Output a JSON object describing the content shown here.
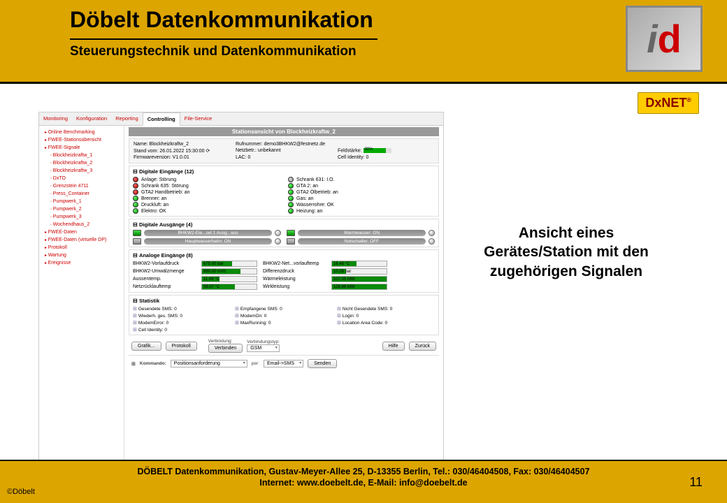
{
  "header": {
    "title": "Döbelt Datenkommunikation",
    "subtitle": "Steuerungstechnik und Datenkommunikation"
  },
  "branding": {
    "dxnet": "DxNET",
    "trademark": "®"
  },
  "tabs": {
    "items": [
      "Monitoring",
      "Konfiguration",
      "Reporting",
      "Controlling",
      "File-Service"
    ],
    "active_index": 3
  },
  "sidebar": [
    {
      "label": "Online Benchmarking",
      "sub": false
    },
    {
      "label": "FWEE-Stationsübersicht",
      "sub": false
    },
    {
      "label": "FWEE-Signale",
      "sub": false
    },
    {
      "label": "Blockheizkraftw_1",
      "sub": true
    },
    {
      "label": "Blockheizkraftw_2",
      "sub": true
    },
    {
      "label": "Blockheizkraftw_3",
      "sub": true
    },
    {
      "label": "DxTO",
      "sub": true
    },
    {
      "label": "Grenzstein 4711",
      "sub": true
    },
    {
      "label": "Press_Container",
      "sub": true
    },
    {
      "label": "Pumpwerk_1",
      "sub": true
    },
    {
      "label": "Pumpwerk_2",
      "sub": true
    },
    {
      "label": "Pumpwerk_3",
      "sub": true
    },
    {
      "label": "Wochendhaus_2",
      "sub": true
    },
    {
      "label": "FWEE-Daten",
      "sub": false
    },
    {
      "label": "FWEE-Daten (virtuelle DP)",
      "sub": false
    },
    {
      "label": "Protokoll",
      "sub": false
    },
    {
      "label": "Wartung",
      "sub": false
    },
    {
      "label": "Ereignisse",
      "sub": false
    }
  ],
  "panel_title": "Stationsansicht von Blockheizkraftw_2",
  "station_info": {
    "name_label": "Name: Blockheizkraftw_2",
    "rufnummer": "Rufnummer: demo3BHKW2@festnetz.de",
    "stand": "Stand vom: 26.01.2022 15:30:00 ⟳",
    "netzbetr": "Netzbetr.: unbekannt",
    "feldstaerke_label": "Feldstärke:",
    "feldstaerke_val": "80%",
    "firmware": "Firmwareversion: V1.0.01",
    "lac": "LAC: 0",
    "cell": "Cell Identity: 0"
  },
  "digital_inputs": {
    "title": "Digitale Eingänge (12)",
    "left": [
      {
        "color": "red",
        "label": "Anlage: Störung"
      },
      {
        "color": "red",
        "label": "Schrank 635: Störung"
      },
      {
        "color": "red",
        "label": "GTA2 Handbetrieb: an"
      },
      {
        "color": "green",
        "label": "Brenner: an"
      },
      {
        "color": "green",
        "label": "Druckluft: an"
      },
      {
        "color": "green",
        "label": "Elektro: OK"
      }
    ],
    "right": [
      {
        "color": "gray",
        "label": "Schrank 631: I.O."
      },
      {
        "color": "green",
        "label": "GTA 2: an"
      },
      {
        "color": "green",
        "label": "GTA2 Ölbetrieb: an"
      },
      {
        "color": "green",
        "label": "Gas: an"
      },
      {
        "color": "green",
        "label": "Wasserrohre: OK"
      },
      {
        "color": "green",
        "label": "Heizung: an"
      }
    ]
  },
  "digital_outputs": {
    "title": "Digitale Ausgänge (4)",
    "items": [
      {
        "led": "green",
        "label": "BHKW2-Ele...sel 1 Ausg.: aus"
      },
      {
        "led": "green",
        "label": "Warmwasser: ON"
      },
      {
        "led": "gray",
        "label": "Hauptwasserhahn: ON"
      },
      {
        "led": "gray",
        "label": "Notschalter: OFF"
      }
    ]
  },
  "analog_inputs": {
    "title": "Analoge Eingänge (8)",
    "rows": [
      {
        "l1": "BHKW2-Vorlaufdruck",
        "v1": "675.00 bar",
        "f1": 55,
        "l2": "BHKW2-Net...vorlauftemp",
        "v2": "16.48 °C",
        "f2": 45
      },
      {
        "l1": "BHKW2-Umwälzmenge",
        "v1": "880.00 m³/h",
        "f1": 70,
        "l2": "Differenzdruck",
        "v2": "10.26 bar",
        "f2": 25
      },
      {
        "l1": "Aussentemp.",
        "v1": "11.06 °C",
        "f1": 32,
        "l2": "Wärmeleistung",
        "v2": "107.05 MW",
        "f2": 100
      },
      {
        "l1": "Netzrücklauftemp",
        "v1": "58.07 °C",
        "f1": 60,
        "l2": "Wirkleistung",
        "v2": "126.86 MW",
        "f2": 100
      }
    ]
  },
  "statistik": {
    "title": "Statistik",
    "items": [
      "Gesendete SMS: 0",
      "Empfangene SMS: 0",
      "Nicht Gesendete SMS: 0",
      "Wiederh. ges. SMS: 0",
      "ModemOn: 0",
      "Login: 0",
      "ModemError: 0",
      "MaxRunning: 0",
      "Location Area Code: 0",
      "Cell Identity: 0"
    ]
  },
  "bottom_bar": {
    "grafik": "Grafik...",
    "protokoll": "Protokoll",
    "verbindung_label": "Verbindung:",
    "verbinden": "Verbinden",
    "verbindungstyp_label": "Verbindungstyp:",
    "verbindungstyp": "GSM",
    "hilfe": "Hilfe",
    "zurueck": "Zurück",
    "kommando_label": "Kommando:",
    "kommando_val": "Positionsanforderung",
    "per_label": "per:",
    "per_val": "Email->SMS",
    "senden": "Senden"
  },
  "caption": "Ansicht eines Gerätes/Station mit den zugehörigen Signalen",
  "footer": {
    "line1": "DÖBELT Datenkommunikation, Gustav-Meyer-Allee 25, D-13355 Berlin, Tel.: 030/46404508, Fax: 030/46404507",
    "line2": "Internet: www.doebelt.de, E-Mail: info@doebelt.de",
    "copyright": "©Döbelt",
    "pagenum": "11"
  },
  "colors": {
    "brand_bg": "#dda500",
    "link_red": "#cc0000",
    "led_green": "#0a8a0a"
  }
}
